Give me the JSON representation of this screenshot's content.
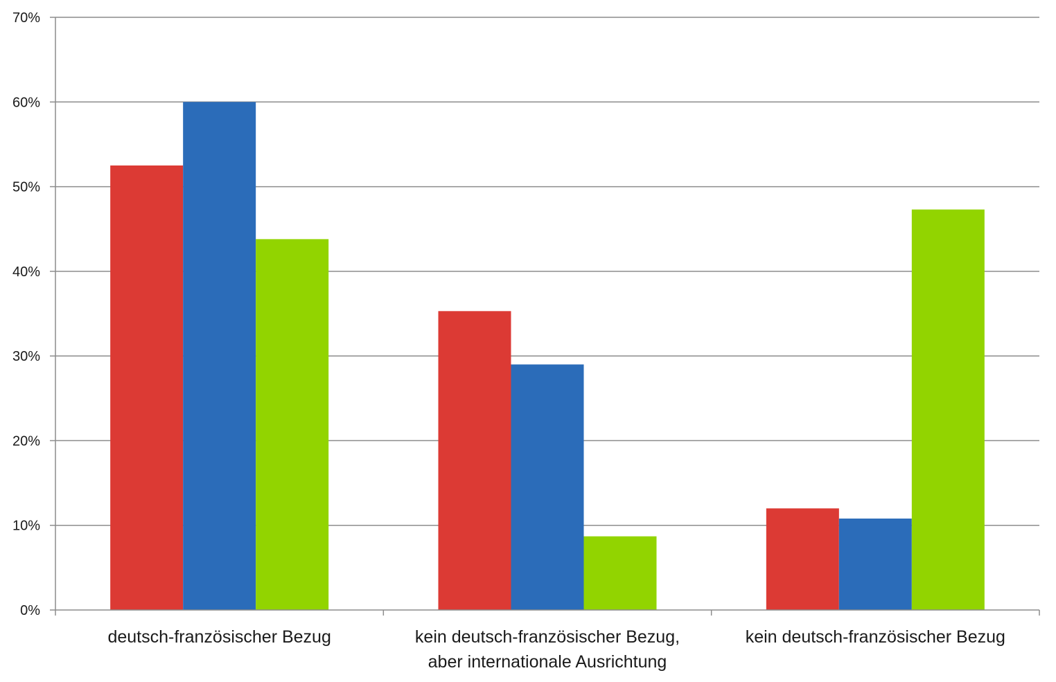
{
  "chart_data": {
    "type": "bar",
    "title": "",
    "xlabel": "",
    "ylabel": "",
    "ylim": [
      0,
      70
    ],
    "y_ticks": [
      0,
      10,
      20,
      30,
      40,
      50,
      60,
      70
    ],
    "y_tick_labels": [
      "0%",
      "10%",
      "20%",
      "30%",
      "40%",
      "50%",
      "60%",
      "70%"
    ],
    "grid": "horizontal",
    "categories": [
      [
        "deutsch-französischer Bezug"
      ],
      [
        "kein deutsch-französischer Bezug,",
        "aber internationale Ausrichtung"
      ],
      [
        "kein deutsch-französischer Bezug"
      ]
    ],
    "series": [
      {
        "color": "#dc3a34",
        "values": [
          52.5,
          35.3,
          12.0
        ]
      },
      {
        "color": "#2b6cb9",
        "values": [
          60.0,
          29.0,
          10.8
        ]
      },
      {
        "color": "#92d400",
        "values": [
          43.8,
          8.7,
          47.3
        ]
      }
    ],
    "colors": {
      "gridline": "#8c8c8c",
      "axis": "#8c8c8c",
      "text": "#1a1a1a",
      "background": "#ffffff"
    }
  }
}
